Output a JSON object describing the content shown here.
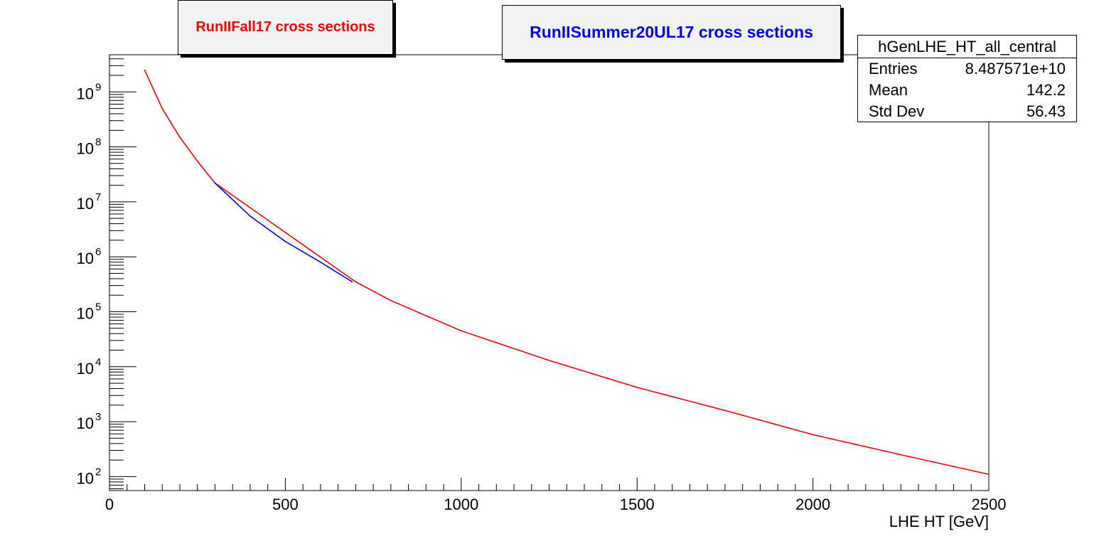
{
  "chart_data": {
    "type": "line",
    "xlabel": "LHE HT [GeV]",
    "ylabel": "",
    "xlim": [
      0,
      2500
    ],
    "ylim": [
      50,
      5000000000
    ],
    "y_scale": "log",
    "x_ticks": [
      0,
      500,
      1000,
      1500,
      2000,
      2500
    ],
    "x_tick_labels": [
      "0",
      "500",
      "1000",
      "1500",
      "2000",
      "2500"
    ],
    "y_tick_exponents": [
      2,
      3,
      4,
      5,
      6,
      7,
      8,
      9
    ],
    "y_tick_base": "10",
    "series": [
      {
        "name": "RunIIFall17 cross sections",
        "color": "#ff0000",
        "x": [
          100,
          150,
          200,
          250,
          300,
          700,
          800,
          1000,
          1250,
          1500,
          1750,
          2000,
          2250,
          2500
        ],
        "y": [
          2500000000,
          500000000,
          150000000,
          55000000,
          22000000,
          350000,
          160000,
          45000,
          13000,
          4200,
          1600,
          580,
          250,
          110
        ]
      },
      {
        "name": "RunIISummer20UL17 cross sections",
        "color": "#0000ff",
        "x": [
          300,
          400,
          500,
          600,
          690
        ],
        "y": [
          22000000,
          5500000,
          1900000,
          800000,
          350000
        ]
      }
    ]
  },
  "legend": {
    "red_label": "RunIIFall17 cross sections",
    "blue_label": "RunIISummer20UL17 cross sections"
  },
  "stats_box": {
    "title": "hGenLHE_HT_all_central",
    "entries_label": "Entries",
    "entries_value": "8.487571e+10",
    "mean_label": "Mean",
    "mean_value": "142.2",
    "stddev_label": "Std Dev",
    "stddev_value": "56.43"
  }
}
